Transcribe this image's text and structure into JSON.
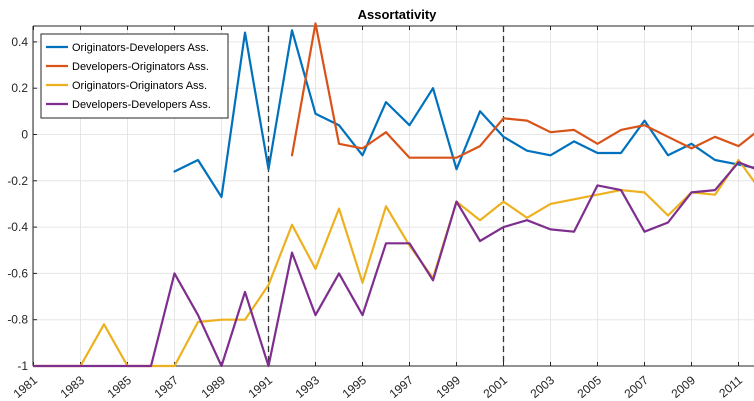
{
  "chart_data": {
    "type": "line",
    "title": "Assortativity",
    "xlabel": "",
    "ylabel": "",
    "xlim": [
      1981,
      2012
    ],
    "ylim": [
      -1,
      0.5
    ],
    "grid": true,
    "legend_position": "top-left",
    "x_ticks": [
      1981,
      1983,
      1985,
      1987,
      1989,
      1991,
      1993,
      1995,
      1997,
      1999,
      2001,
      2003,
      2005,
      2007,
      2009,
      2011
    ],
    "x_tick_labels": [
      "1981",
      "1983",
      "1985",
      "1987",
      "1989",
      "1991",
      "1993",
      "1995",
      "1997",
      "1999",
      "2001",
      "2003",
      "2005",
      "2007",
      "2009",
      "2011"
    ],
    "y_ticks": [
      -1,
      -0.8,
      -0.6,
      -0.4,
      -0.2,
      0,
      0.2,
      0.4
    ],
    "y_tick_labels": [
      "-1",
      "-0.8",
      "-0.6",
      "-0.4",
      "-0.2",
      "0",
      "0.2",
      "0.4"
    ],
    "vlines": [
      1991,
      2001
    ],
    "series": [
      {
        "name": "Originators-Developers Ass.",
        "color": "#0072BD",
        "points": [
          [
            1987,
            -0.16
          ],
          [
            1988,
            -0.11
          ],
          [
            1989,
            -0.27
          ],
          [
            1990,
            0.44
          ],
          [
            1991,
            -0.15
          ],
          [
            1992,
            0.45
          ],
          [
            1993,
            0.09
          ],
          [
            1994,
            0.04
          ],
          [
            1995,
            -0.09
          ],
          [
            1996,
            0.14
          ],
          [
            1997,
            0.04
          ],
          [
            1998,
            0.2
          ],
          [
            1999,
            -0.15
          ],
          [
            2000,
            0.1
          ],
          [
            2001,
            -0.01
          ],
          [
            2002,
            -0.07
          ],
          [
            2003,
            -0.09
          ],
          [
            2004,
            -0.03
          ],
          [
            2005,
            -0.08
          ],
          [
            2006,
            -0.08
          ],
          [
            2007,
            0.06
          ],
          [
            2008,
            -0.09
          ],
          [
            2009,
            -0.04
          ],
          [
            2010,
            -0.11
          ],
          [
            2011,
            -0.13
          ],
          [
            2012,
            -0.15
          ]
        ]
      },
      {
        "name": "Developers-Originators Ass.",
        "color": "#D95319",
        "points": [
          [
            1992,
            -0.09
          ],
          [
            1993,
            0.48
          ],
          [
            1994,
            -0.04
          ],
          [
            1995,
            -0.06
          ],
          [
            1996,
            0.01
          ],
          [
            1997,
            -0.1
          ],
          [
            1998,
            -0.1
          ],
          [
            1999,
            -0.1
          ],
          [
            2000,
            -0.05
          ],
          [
            2001,
            0.07
          ],
          [
            2002,
            0.06
          ],
          [
            2003,
            0.01
          ],
          [
            2004,
            0.02
          ],
          [
            2005,
            -0.04
          ],
          [
            2006,
            0.02
          ],
          [
            2007,
            0.04
          ],
          [
            2008,
            -0.01
          ],
          [
            2009,
            -0.06
          ],
          [
            2010,
            -0.01
          ],
          [
            2011,
            -0.05
          ],
          [
            2012,
            0.03
          ]
        ]
      },
      {
        "name": "Originators-Originators Ass.",
        "color": "#EDB120",
        "points": [
          [
            1981,
            -1.0
          ],
          [
            1982,
            -1.0
          ],
          [
            1983,
            -1.0
          ],
          [
            1984,
            -0.82
          ],
          [
            1985,
            -1.0
          ],
          [
            1986,
            -1.0
          ],
          [
            1987,
            -1.0
          ],
          [
            1988,
            -0.81
          ],
          [
            1989,
            -0.8
          ],
          [
            1990,
            -0.8
          ],
          [
            1991,
            -0.65
          ],
          [
            1992,
            -0.39
          ],
          [
            1993,
            -0.58
          ],
          [
            1994,
            -0.32
          ],
          [
            1995,
            -0.64
          ],
          [
            1996,
            -0.31
          ],
          [
            1997,
            -0.48
          ],
          [
            1998,
            -0.62
          ],
          [
            1999,
            -0.29
          ],
          [
            2000,
            -0.37
          ],
          [
            2001,
            -0.29
          ],
          [
            2002,
            -0.36
          ],
          [
            2003,
            -0.3
          ],
          [
            2004,
            -0.28
          ],
          [
            2005,
            -0.26
          ],
          [
            2006,
            -0.24
          ],
          [
            2007,
            -0.25
          ],
          [
            2008,
            -0.35
          ],
          [
            2009,
            -0.25
          ],
          [
            2010,
            -0.26
          ],
          [
            2011,
            -0.11
          ],
          [
            2012,
            -0.25
          ]
        ]
      },
      {
        "name": "Developers-Developers Ass.",
        "color": "#7E2F8E",
        "points": [
          [
            1981,
            -1.0
          ],
          [
            1982,
            -1.0
          ],
          [
            1983,
            -1.0
          ],
          [
            1984,
            -1.0
          ],
          [
            1985,
            -1.0
          ],
          [
            1986,
            -1.0
          ],
          [
            1987,
            -0.6
          ],
          [
            1988,
            -0.78
          ],
          [
            1989,
            -1.0
          ],
          [
            1990,
            -0.68
          ],
          [
            1991,
            -1.0
          ],
          [
            1992,
            -0.51
          ],
          [
            1993,
            -0.78
          ],
          [
            1994,
            -0.6
          ],
          [
            1995,
            -0.78
          ],
          [
            1996,
            -0.47
          ],
          [
            1997,
            -0.47
          ],
          [
            1998,
            -0.63
          ],
          [
            1999,
            -0.29
          ],
          [
            2000,
            -0.46
          ],
          [
            2001,
            -0.4
          ],
          [
            2002,
            -0.37
          ],
          [
            2003,
            -0.41
          ],
          [
            2004,
            -0.42
          ],
          [
            2005,
            -0.22
          ],
          [
            2006,
            -0.24
          ],
          [
            2007,
            -0.42
          ],
          [
            2008,
            -0.38
          ],
          [
            2009,
            -0.25
          ],
          [
            2010,
            -0.24
          ],
          [
            2011,
            -0.12
          ],
          [
            2012,
            -0.16
          ]
        ]
      }
    ]
  }
}
